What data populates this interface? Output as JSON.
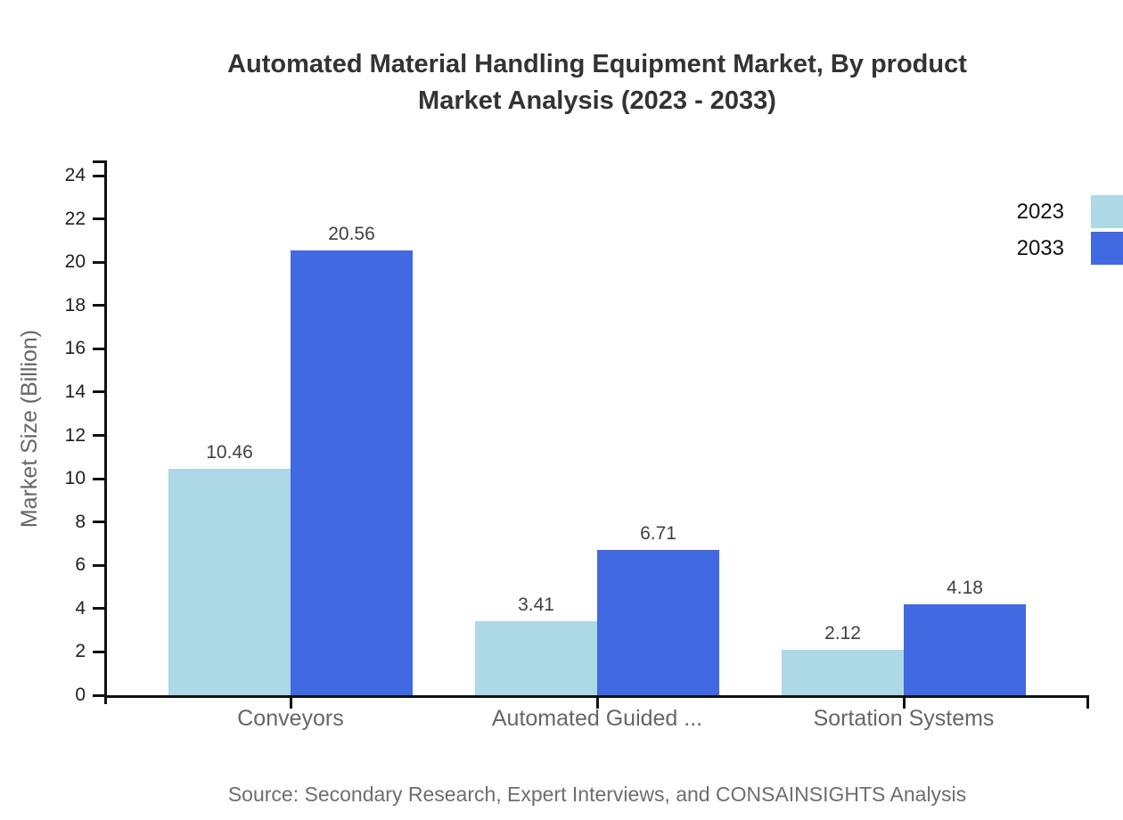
{
  "title": {
    "line1": "Automated Material Handling Equipment Market, By product",
    "line2": "Market Analysis (2023 - 2033)"
  },
  "source_note": "Source: Secondary Research, Expert Interviews, and CONSAINSIGHTS Analysis",
  "chart_data": {
    "type": "bar",
    "title": "Automated Material Handling Equipment Market, By product Market Analysis (2023 - 2033)",
    "categories": [
      "Conveyors",
      "Automated Guided ...",
      "Sortation Systems"
    ],
    "series": [
      {
        "name": "2023",
        "color": "#ADD8E6",
        "values": [
          10.46,
          3.41,
          2.12
        ]
      },
      {
        "name": "2033",
        "color": "#4169E1",
        "values": [
          20.56,
          6.71,
          4.18
        ]
      }
    ],
    "xlabel": "",
    "ylabel": "Market Size (Billion)",
    "ylim": [
      0,
      24
    ],
    "yticks": [
      0,
      2,
      4,
      6,
      8,
      10,
      12,
      14,
      16,
      18,
      20,
      22,
      24
    ],
    "value_labels": true,
    "grid": false,
    "legend_position": "top-right",
    "colors": {
      "axis": "#111111",
      "title_text": "#333333",
      "tick_text": "#1f1f1f",
      "category_text": "#666666",
      "value_text": "#404040",
      "axis_label_text": "#666666",
      "source_text": "#6e6e6e"
    }
  }
}
